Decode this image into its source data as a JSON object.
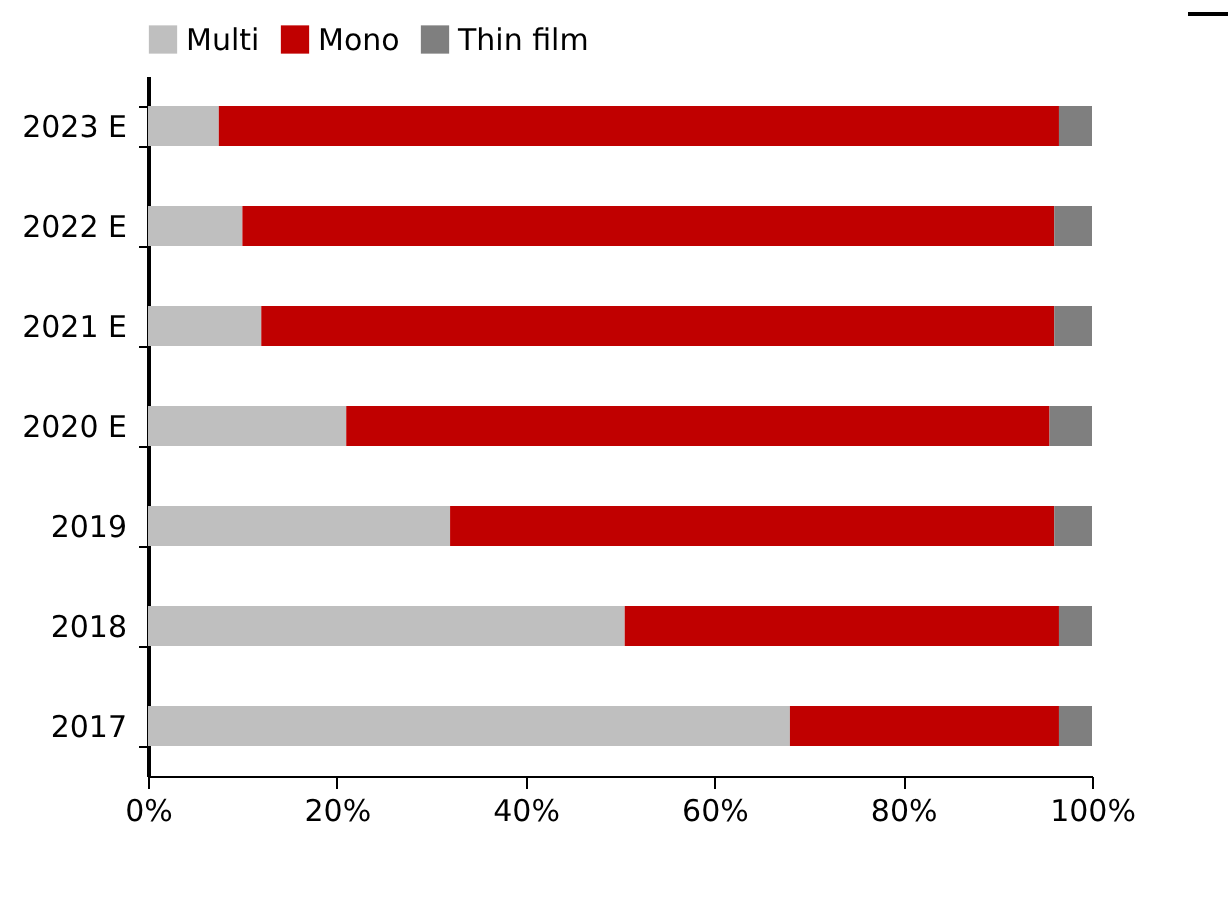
{
  "chart_data": {
    "type": "bar",
    "orientation": "horizontal",
    "stacked": true,
    "legend": "top",
    "grid": false,
    "categories": [
      "2023 E",
      "2022 E",
      "2021 E",
      "2020 E",
      "2019",
      "2018",
      "2017"
    ],
    "series": [
      {
        "name": "Multi",
        "color": "#bfbfbf",
        "values": [
          7.5,
          10,
          12,
          21,
          32,
          50.5,
          68
        ]
      },
      {
        "name": "Mono",
        "color": "#c00000",
        "values": [
          89,
          86,
          84,
          74.5,
          64,
          46,
          28.5
        ]
      },
      {
        "name": "Thin film",
        "color": "#7f7f7f",
        "values": [
          3.5,
          4,
          4,
          4.5,
          4,
          3.5,
          3.5
        ]
      }
    ],
    "xlim": [
      0,
      100
    ],
    "xticks": [
      {
        "value": 0,
        "label": "0%"
      },
      {
        "value": 20,
        "label": "20%"
      },
      {
        "value": 40,
        "label": "40%"
      },
      {
        "value": 60,
        "label": "60%"
      },
      {
        "value": 80,
        "label": "80%"
      },
      {
        "value": 100,
        "label": "100%"
      }
    ]
  }
}
